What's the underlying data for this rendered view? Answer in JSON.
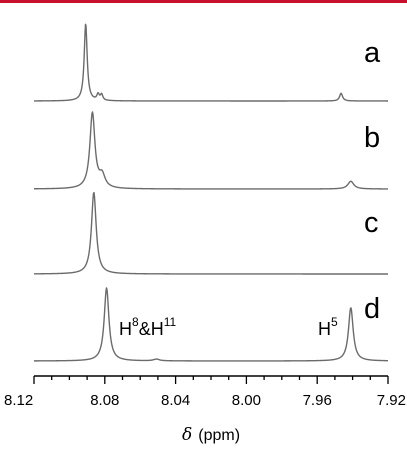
{
  "colors": {
    "accent_bar": "#c8102e",
    "trace": "#6b6b6b",
    "axis": "#000000",
    "text": "#000000"
  },
  "chart_data": {
    "type": "line",
    "x_axis": {
      "label_symbol": "δ",
      "label_unit": "(ppm)",
      "range": [
        8.12,
        7.92
      ],
      "reversed": true,
      "major_ticks": [
        8.12,
        8.08,
        8.04,
        8.0,
        7.96,
        7.92
      ],
      "tick_labels": [
        "8.12",
        "8.08",
        "8.04",
        "8.00",
        "7.96",
        "7.92"
      ],
      "minor_tick_step": 0.01
    },
    "y_axis": {
      "visible": false
    },
    "grid": false,
    "series": [
      {
        "name": "a",
        "peaks": [
          {
            "shift": 8.0908,
            "height": 0.9,
            "width": 0.001
          },
          {
            "shift": 8.0838,
            "height": 0.07,
            "width": 0.0008
          },
          {
            "shift": 8.0818,
            "height": 0.07,
            "width": 0.0008
          },
          {
            "shift": 7.9465,
            "height": 0.09,
            "width": 0.001
          }
        ]
      },
      {
        "name": "b",
        "peaks": [
          {
            "shift": 8.087,
            "height": 0.88,
            "width": 0.0017
          },
          {
            "shift": 8.0815,
            "height": 0.14,
            "width": 0.002
          },
          {
            "shift": 7.941,
            "height": 0.09,
            "width": 0.002
          }
        ]
      },
      {
        "name": "c",
        "peaks": [
          {
            "shift": 8.0862,
            "height": 0.95,
            "width": 0.0016
          }
        ]
      },
      {
        "name": "d",
        "peaks": [
          {
            "shift": 8.079,
            "height": 0.85,
            "width": 0.0016
          },
          {
            "shift": 8.0508,
            "height": 0.02,
            "width": 0.002
          },
          {
            "shift": 7.941,
            "height": 0.62,
            "width": 0.0016
          }
        ]
      }
    ],
    "annotations": [
      {
        "base": "H",
        "sup": "8",
        "mid": "&H",
        "sup2": "11",
        "series": "d"
      },
      {
        "base": "H",
        "sup": "5",
        "series": "d"
      }
    ]
  }
}
